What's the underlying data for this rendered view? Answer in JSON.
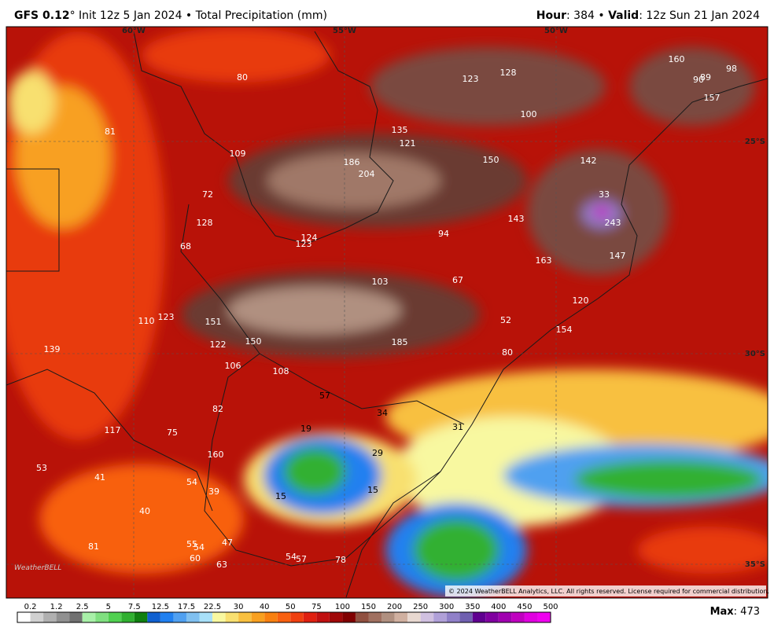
{
  "header": {
    "model": "GFS 0.12",
    "title_rest": "° Init 12z 5 Jan 2024 • Total Precipitation (mm)",
    "hour_label": "Hour",
    "hour_value": ": 384 • ",
    "valid_label": "Valid",
    "valid_value": ": 12z Sun 21 Jan 2024"
  },
  "map": {
    "longitude_labels": [
      "60°W",
      "55°W",
      "50°W"
    ],
    "latitude_labels": [
      "25°S",
      "30°S",
      "35°S"
    ],
    "values": [
      80,
      123,
      128,
      160,
      90,
      89,
      98,
      157,
      100,
      81,
      135,
      121,
      109,
      186,
      204,
      150,
      142,
      72,
      33,
      128,
      243,
      143,
      94,
      124,
      123,
      68,
      147,
      163,
      103,
      67,
      120,
      110,
      123,
      151,
      52,
      154,
      150,
      122,
      185,
      139,
      80,
      106,
      108,
      57,
      82,
      34,
      117,
      75,
      31,
      19,
      29,
      160,
      53,
      41,
      54,
      39,
      15,
      15,
      40,
      55,
      54,
      47,
      81,
      60,
      63,
      54,
      57,
      78
    ],
    "logo": "WeatherBELL",
    "copyright": "© 2024 WeatherBELL Analytics, LLC. All rights reserved. License required for commercial distribution."
  },
  "colorbar": {
    "labels": [
      0.2,
      1.2,
      2.5,
      5,
      7.5,
      12.5,
      17.5,
      22.5,
      30,
      40,
      50,
      75,
      100,
      150,
      200,
      250,
      300,
      350,
      400,
      450,
      500
    ],
    "colors": [
      "#ffffff",
      "#d0d0d0",
      "#b0b0b0",
      "#909090",
      "#707070",
      "#a8f0a8",
      "#80e080",
      "#50d050",
      "#30b030",
      "#108010",
      "#1060d0",
      "#2080f0",
      "#50a0f0",
      "#80c0f0",
      "#a8e0f8",
      "#f8f8a0",
      "#f8e070",
      "#f8c040",
      "#f8a020",
      "#f88010",
      "#f86010",
      "#f04010",
      "#e02010",
      "#c01010",
      "#a00808",
      "#800000",
      "#905040",
      "#a07060",
      "#b09080",
      "#d0b0a0",
      "#e8d8d0",
      "#d0c0e0",
      "#b0a0d8",
      "#9080c8",
      "#7060b0",
      "#600090",
      "#8000a0",
      "#a000b0",
      "#c000c0",
      "#e000e0",
      "#f000f0"
    ]
  },
  "max": {
    "label": "Max",
    "value": ": 473"
  }
}
